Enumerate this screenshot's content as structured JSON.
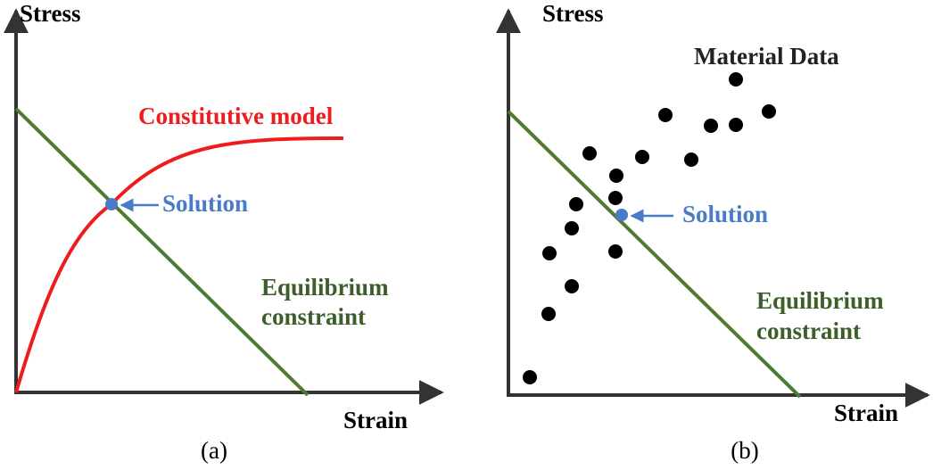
{
  "panels": [
    {
      "y_axis_label": "Stress",
      "x_axis_label": "Strain",
      "caption": "(a)",
      "curve_label": "Constitutive model",
      "solution_label": "Solution",
      "constraint_label": [
        "Equilibrium",
        "constraint"
      ]
    },
    {
      "y_axis_label": "Stress",
      "x_axis_label": "Strain",
      "caption": "(b)",
      "data_label": "Material Data",
      "solution_label": "Solution",
      "constraint_label": [
        "Equilibrium",
        "constraint"
      ]
    }
  ]
}
